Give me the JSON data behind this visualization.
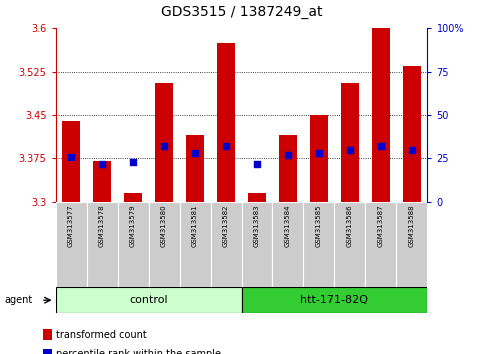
{
  "title": "GDS3515 / 1387249_at",
  "samples": [
    "GSM313577",
    "GSM313578",
    "GSM313579",
    "GSM313580",
    "GSM313581",
    "GSM313582",
    "GSM313583",
    "GSM313584",
    "GSM313585",
    "GSM313586",
    "GSM313587",
    "GSM313588"
  ],
  "transformed_counts": [
    3.44,
    3.37,
    3.315,
    3.505,
    3.415,
    3.575,
    3.315,
    3.415,
    3.45,
    3.505,
    3.6,
    3.535
  ],
  "percentile_ranks": [
    26,
    22,
    23,
    32,
    28,
    32,
    22,
    27,
    28,
    30,
    32,
    30
  ],
  "bar_color": "#cc0000",
  "dot_color": "#0000cc",
  "ylim_left": [
    3.3,
    3.6
  ],
  "ylim_right": [
    0,
    100
  ],
  "yticks_left": [
    3.3,
    3.375,
    3.45,
    3.525,
    3.6
  ],
  "yticks_right": [
    0,
    25,
    50,
    75,
    100
  ],
  "ytick_labels_left": [
    "3.3",
    "3.375",
    "3.45",
    "3.525",
    "3.6"
  ],
  "ytick_labels_right": [
    "0",
    "25",
    "50",
    "75",
    "100%"
  ],
  "grid_values": [
    3.375,
    3.45,
    3.525
  ],
  "bar_bottom": 3.3,
  "bar_width": 0.6,
  "group_control_color": "#ccffcc",
  "group_htt_color": "#33cc33",
  "group_control_label": "control",
  "group_htt_label": "htt-171-82Q",
  "agent_label": "agent",
  "left_axis_color": "#cc0000",
  "right_axis_color": "#0000cc",
  "legend_items": [
    {
      "label": "transformed count",
      "color": "#cc0000"
    },
    {
      "label": "percentile rank within the sample",
      "color": "#0000cc"
    }
  ],
  "title_fontsize": 10,
  "tick_fontsize": 7,
  "sample_fontsize": 5,
  "group_fontsize": 8,
  "legend_fontsize": 7,
  "agent_fontsize": 7
}
